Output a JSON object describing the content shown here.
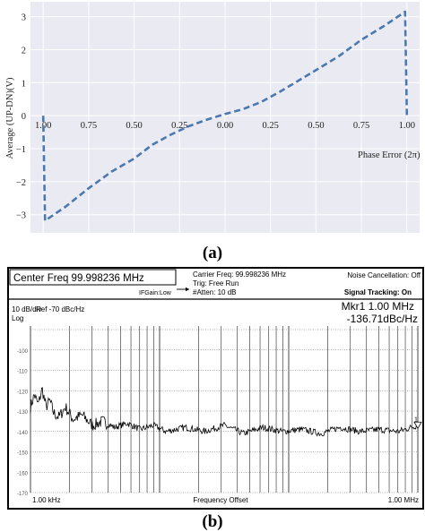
{
  "chart_data": [
    {
      "type": "line",
      "panel_label": "(a)",
      "ylabel": "Average (UP-DN)(V)",
      "xlabel": "Phase Error (2π)",
      "x_tick_labels": [
        "1.00",
        "0.75",
        "0.50",
        "0.25",
        "0.00",
        "0.25",
        "0.50",
        "0.75",
        "1.00"
      ],
      "x_ticks": [
        -1.0,
        -0.75,
        -0.5,
        -0.25,
        0.0,
        0.25,
        0.5,
        0.75,
        1.0
      ],
      "y_ticks": [
        -3,
        -2,
        -1,
        0,
        1,
        2,
        3
      ],
      "xlim": [
        -1.07,
        1.07
      ],
      "ylim": [
        -3.55,
        3.45
      ],
      "grid": true,
      "line_color": "#4a78b0",
      "line_style": "dashed",
      "series": [
        {
          "x": [
            -1.0,
            -0.99,
            -0.875,
            -0.75,
            -0.625,
            -0.5,
            -0.4,
            -0.3,
            -0.2,
            -0.1,
            0.0,
            0.1,
            0.2,
            0.3,
            0.4,
            0.5,
            0.625,
            0.75,
            0.875,
            0.99,
            1.0
          ],
          "y": [
            0.0,
            -3.18,
            -2.75,
            -2.2,
            -1.7,
            -1.3,
            -0.88,
            -0.58,
            -0.32,
            -0.12,
            0.05,
            0.2,
            0.42,
            0.72,
            1.05,
            1.38,
            1.8,
            2.3,
            2.72,
            3.15,
            0.0
          ]
        }
      ]
    },
    {
      "type": "line",
      "panel_label": "(b)",
      "header": {
        "title": "Center Freq 99.998236 MHz",
        "carrier": "Carrier Freq: 99.998236 MHz",
        "trig": "Trig: Free Run",
        "atten": "#Atten: 10 dB",
        "ifgain": "IFGain:Low",
        "noise_cancel": "Noise Cancellation: Off",
        "signal_tracking": "Signal Tracking: On"
      },
      "scale": "10 dB/div",
      "log_label": "Log",
      "ref": "Ref  -70 dBc/Hz",
      "marker": {
        "label": "Mkr1 1.00 MHz",
        "value": "-136.71dBc/Hz",
        "marker_id": "1",
        "x_log": 6.0,
        "y": -136.71
      },
      "y_tick_labels": [
        "-100",
        "-110",
        "-120",
        "-130",
        "-140",
        "-150",
        "-160",
        "-170"
      ],
      "y_ticks": [
        -100,
        -110,
        -120,
        -130,
        -140,
        -150,
        -160,
        -170
      ],
      "ylim": [
        -170,
        -90
      ],
      "xlim_log": [
        3,
        6
      ],
      "xlabel": "Frequency Offset",
      "x_start_label": "1.00 kHz",
      "x_stop_label": "1.00 MHz",
      "grid": "log",
      "trace_color": "#000000",
      "series": [
        {
          "x_log": [
            3.0,
            3.03,
            3.06,
            3.09,
            3.12,
            3.15,
            3.18,
            3.22,
            3.27,
            3.33,
            3.4,
            3.48,
            3.56,
            3.65,
            3.75,
            3.85,
            3.95,
            4.05,
            4.2,
            4.35,
            4.5,
            4.65,
            4.8,
            4.95,
            5.1,
            5.25,
            5.4,
            5.55,
            5.7,
            5.85,
            6.0
          ],
          "y": [
            -128,
            -122,
            -127,
            -119,
            -128,
            -125,
            -131,
            -133,
            -128,
            -134,
            -132,
            -137,
            -135,
            -138,
            -136,
            -139,
            -137,
            -140,
            -138,
            -140,
            -137,
            -141,
            -138,
            -140,
            -139,
            -141,
            -138,
            -140,
            -139,
            -140,
            -137
          ]
        }
      ]
    }
  ]
}
